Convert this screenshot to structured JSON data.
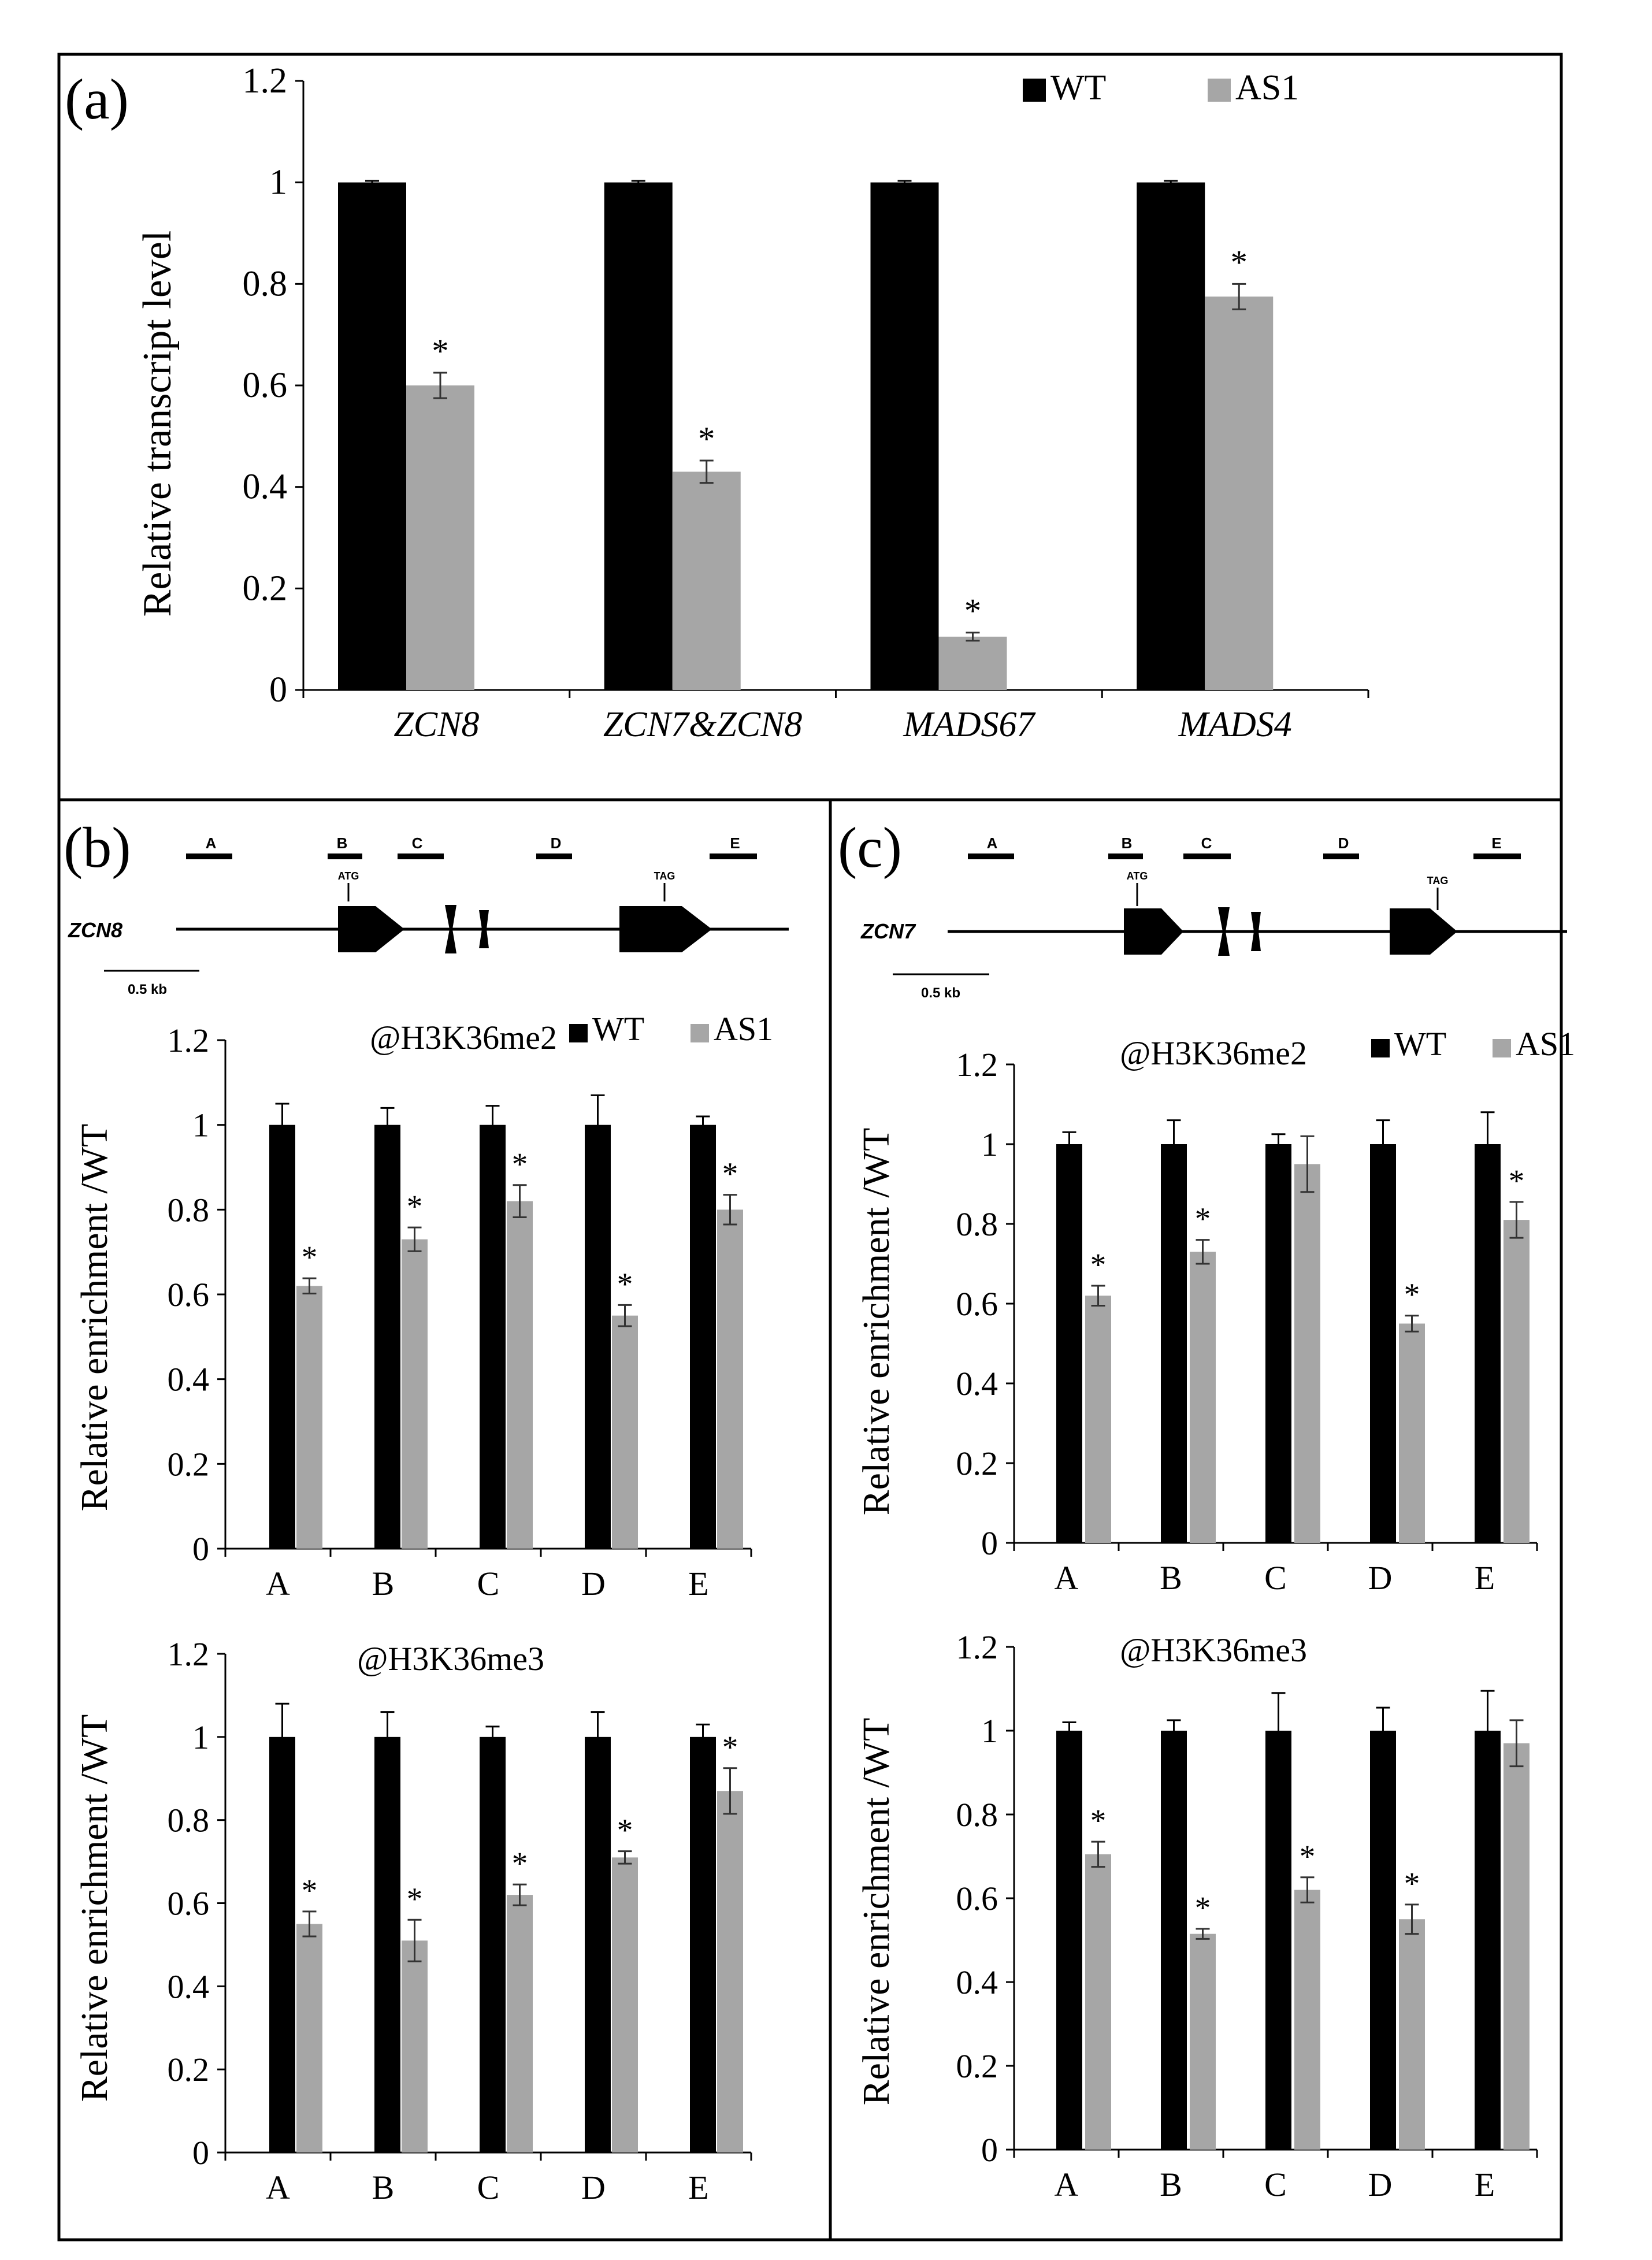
{
  "colors": {
    "wt": "#000000",
    "as1": "#a6a6a6",
    "frame": "#000000"
  },
  "chart_data": [
    {
      "panel": "a",
      "panel_label": "(a)",
      "type": "bar",
      "title": "",
      "ylabel": "Relative transcript level",
      "xlabel": "",
      "ylim": [
        0,
        1.2
      ],
      "yticks": [
        "0",
        "0.2",
        "0.4",
        "0.6",
        "0.8",
        "1",
        "1.2"
      ],
      "categories": [
        "ZCN8",
        "ZCN7&ZCN8",
        "MADS67",
        "MADS4"
      ],
      "legend": [
        "WT",
        "AS1"
      ],
      "legend_position": "top-right",
      "series": [
        {
          "name": "WT",
          "values": [
            1,
            1,
            1,
            1
          ],
          "errors": [
            0.003,
            0.003,
            0.003,
            0.003
          ],
          "signif": [
            "",
            "",
            "",
            ""
          ]
        },
        {
          "name": "AS1",
          "values": [
            0.6,
            0.43,
            0.105,
            0.775
          ],
          "errors": [
            0.025,
            0.022,
            0.008,
            0.025
          ],
          "signif": [
            "*",
            "*",
            "*",
            "*"
          ]
        }
      ]
    },
    {
      "panel": "b-top",
      "type": "bar",
      "title": "@H3K36me2",
      "ylabel": "Relative enrichment /WT",
      "ylim": [
        0,
        1.2
      ],
      "yticks": [
        "0",
        "0.2",
        "0.4",
        "0.6",
        "0.8",
        "1",
        "1.2"
      ],
      "categories": [
        "A",
        "B",
        "C",
        "D",
        "E"
      ],
      "legend": [
        "WT",
        "AS1"
      ],
      "legend_position": "top-right",
      "series": [
        {
          "name": "WT",
          "values": [
            1,
            1,
            1,
            1,
            1
          ],
          "errors": [
            0.05,
            0.04,
            0.045,
            0.07,
            0.02
          ],
          "signif": [
            "",
            "",
            "",
            "",
            ""
          ]
        },
        {
          "name": "AS1",
          "values": [
            0.62,
            0.73,
            0.82,
            0.55,
            0.8
          ],
          "errors": [
            0.018,
            0.028,
            0.038,
            0.025,
            0.035
          ],
          "signif": [
            "*",
            "*",
            "*",
            "*",
            "*"
          ]
        }
      ]
    },
    {
      "panel": "b-bottom",
      "type": "bar",
      "title": "@H3K36me3",
      "ylabel": "Relative enrichment /WT",
      "ylim": [
        0,
        1.2
      ],
      "yticks": [
        "0",
        "0.2",
        "0.4",
        "0.6",
        "0.8",
        "1",
        "1.2"
      ],
      "categories": [
        "A",
        "B",
        "C",
        "D",
        "E"
      ],
      "legend": [],
      "series": [
        {
          "name": "WT",
          "values": [
            1,
            1,
            1,
            1,
            1
          ],
          "errors": [
            0.08,
            0.06,
            0.025,
            0.06,
            0.03
          ],
          "signif": [
            "",
            "",
            "",
            "",
            ""
          ]
        },
        {
          "name": "AS1",
          "values": [
            0.55,
            0.51,
            0.62,
            0.71,
            0.87
          ],
          "errors": [
            0.03,
            0.05,
            0.025,
            0.015,
            0.055
          ],
          "signif": [
            "*",
            "*",
            "*",
            "*",
            "*"
          ]
        }
      ]
    },
    {
      "panel": "c-top",
      "type": "bar",
      "title": "@H3K36me2",
      "ylabel": "Relative enrichment /WT",
      "ylim": [
        0,
        1.2
      ],
      "yticks": [
        "0",
        "0.2",
        "0.4",
        "0.6",
        "0.8",
        "1",
        "1.2"
      ],
      "categories": [
        "A",
        "B",
        "C",
        "D",
        "E"
      ],
      "legend": [
        "WT",
        "AS1"
      ],
      "legend_position": "top-right",
      "series": [
        {
          "name": "WT",
          "values": [
            1,
            1,
            1,
            1,
            1
          ],
          "errors": [
            0.03,
            0.06,
            0.025,
            0.06,
            0.08
          ],
          "signif": [
            "",
            "",
            "",
            "",
            ""
          ]
        },
        {
          "name": "AS1",
          "values": [
            0.62,
            0.73,
            0.95,
            0.55,
            0.81
          ],
          "errors": [
            0.025,
            0.03,
            0.07,
            0.02,
            0.045
          ],
          "signif": [
            "*",
            "*",
            "",
            "*",
            "*"
          ]
        }
      ]
    },
    {
      "panel": "c-bottom",
      "type": "bar",
      "title": "@H3K36me3",
      "ylabel": "Relative enrichment /WT",
      "ylim": [
        0,
        1.2
      ],
      "yticks": [
        "0",
        "0.2",
        "0.4",
        "0.6",
        "0.8",
        "1",
        "1.2"
      ],
      "categories": [
        "A",
        "B",
        "C",
        "D",
        "E"
      ],
      "legend": [],
      "series": [
        {
          "name": "WT",
          "values": [
            1,
            1,
            1,
            1,
            1
          ],
          "errors": [
            0.02,
            0.025,
            0.09,
            0.055,
            0.095
          ],
          "signif": [
            "",
            "",
            "",
            "",
            ""
          ]
        },
        {
          "name": "AS1",
          "values": [
            0.705,
            0.515,
            0.62,
            0.55,
            0.97
          ],
          "errors": [
            0.03,
            0.012,
            0.03,
            0.035,
            0.055
          ],
          "signif": [
            "*",
            "*",
            "*",
            "*",
            ""
          ]
        }
      ]
    }
  ],
  "gene_diagrams": [
    {
      "panel_label": "(b)",
      "gene": "ZCN8",
      "regions": [
        "A",
        "B",
        "C",
        "D",
        "E"
      ],
      "start_codon": "ATG",
      "stop_codon": "TAG",
      "scale_label": "0.5 kb"
    },
    {
      "panel_label": "(c)",
      "gene": "ZCN7",
      "regions": [
        "A",
        "B",
        "C",
        "D",
        "E"
      ],
      "start_codon": "ATG",
      "stop_codon": "TAG",
      "scale_label": "0.5 kb"
    }
  ]
}
